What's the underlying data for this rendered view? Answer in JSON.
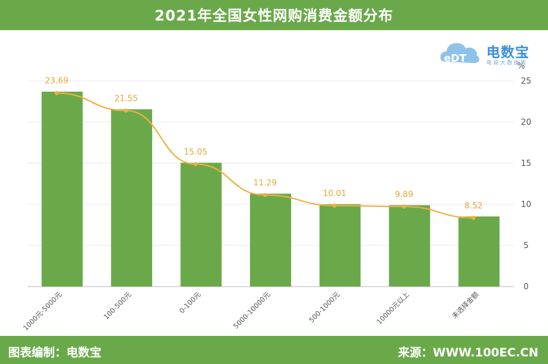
{
  "header": {
    "title": "2021年全国女性网购消费金额分布"
  },
  "footer": {
    "left_text": "图表编制：电数宝",
    "right_text": "来源：WWW.100EC.CN"
  },
  "logo": {
    "brand_name": "电数宝",
    "mark_text": "eDT",
    "tagline": "电商大数据库"
  },
  "colors": {
    "bar": "#6aa94a",
    "line": "#f0b040",
    "header": "#6aa94a"
  },
  "chart_data": {
    "type": "bar",
    "categories": [
      "1000元-5000元",
      "100-500元",
      "0-100元",
      "5000-10000元",
      "500-1000元",
      "10000元以上",
      "未选择金额"
    ],
    "values": [
      23.69,
      21.55,
      15.05,
      11.29,
      10.01,
      9.89,
      8.52
    ],
    "overlay_line": true,
    "title": "2021年全国女性网购消费金额分布",
    "xlabel": "",
    "ylabel": "%",
    "ylim": [
      0,
      25
    ],
    "yticks": [
      0,
      5,
      10,
      15,
      20,
      25
    ],
    "grid": true,
    "y_axis_side": "right"
  }
}
